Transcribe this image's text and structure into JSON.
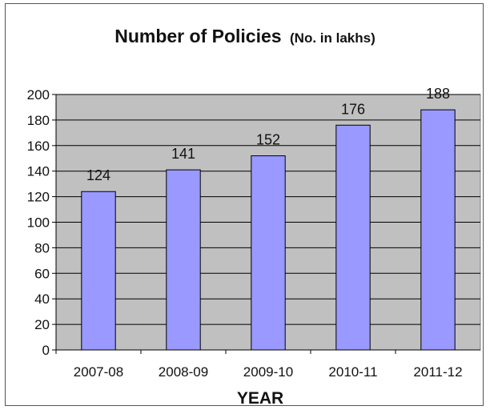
{
  "chart_data": {
    "type": "bar",
    "title": "Number of Policies",
    "subtitle": "(No. in lakhs)",
    "xlabel": "YEAR",
    "ylabel": "",
    "categories": [
      "2007-08",
      "2008-09",
      "2009-10",
      "2010-11",
      "2011-12"
    ],
    "values": [
      124,
      141,
      152,
      176,
      188
    ],
    "data_labels": [
      "124",
      "141",
      "152",
      "176",
      "188"
    ],
    "ylim": [
      0,
      200
    ],
    "yticks": [
      0,
      20,
      40,
      60,
      80,
      100,
      120,
      140,
      160,
      180,
      200
    ],
    "grid": true,
    "legend": "none",
    "colors": {
      "bar": "#9999ff",
      "plot_bg": "#c0c0c0",
      "grid": "#000000"
    }
  }
}
